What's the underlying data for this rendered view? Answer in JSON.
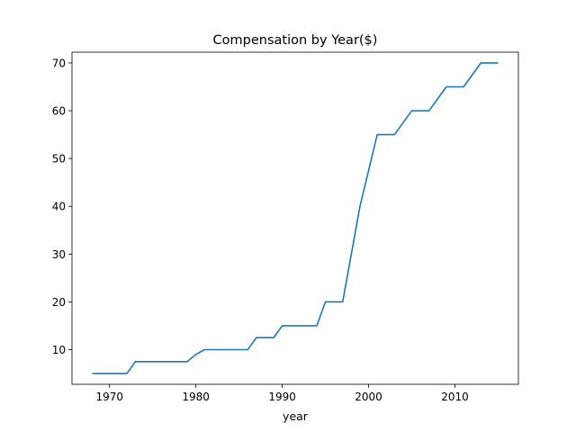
{
  "chart_data": {
    "type": "line",
    "title": "Compensation by Year($)",
    "xlabel": "year",
    "ylabel": "",
    "xlim": [
      1965.65,
      2017.35
    ],
    "ylim": [
      2.75,
      72.25
    ],
    "xticks": [
      1970,
      1980,
      1990,
      2000,
      2010
    ],
    "yticks": [
      10,
      20,
      30,
      40,
      50,
      60,
      70
    ],
    "xtick_labels": [
      "1970",
      "1980",
      "1990",
      "2000",
      "2010"
    ],
    "ytick_labels": [
      "10",
      "20",
      "30",
      "40",
      "50",
      "60",
      "70"
    ],
    "grid": false,
    "series": [
      {
        "color": "#1f77b4",
        "x": [
          1968,
          1969,
          1970,
          1971,
          1972,
          1973,
          1974,
          1975,
          1976,
          1977,
          1978,
          1979,
          1980,
          1981,
          1982,
          1983,
          1984,
          1985,
          1986,
          1987,
          1988,
          1989,
          1990,
          1991,
          1992,
          1993,
          1994,
          1995,
          1996,
          1997,
          1998,
          1999,
          2000,
          2001,
          2002,
          2003,
          2004,
          2005,
          2006,
          2007,
          2008,
          2009,
          2010,
          2011,
          2012,
          2013,
          2014,
          2015
        ],
        "y": [
          5,
          5,
          5,
          5,
          5,
          7.5,
          7.5,
          7.5,
          7.5,
          7.5,
          7.5,
          7.5,
          9,
          10,
          10,
          10,
          10,
          10,
          10,
          12.5,
          12.5,
          12.5,
          15,
          15,
          15,
          15,
          15,
          20,
          20,
          20,
          30,
          40,
          47.5,
          55,
          55,
          55,
          57.5,
          60,
          60,
          60,
          62.5,
          65,
          65,
          65,
          67.5,
          70,
          70,
          70
        ]
      }
    ]
  }
}
